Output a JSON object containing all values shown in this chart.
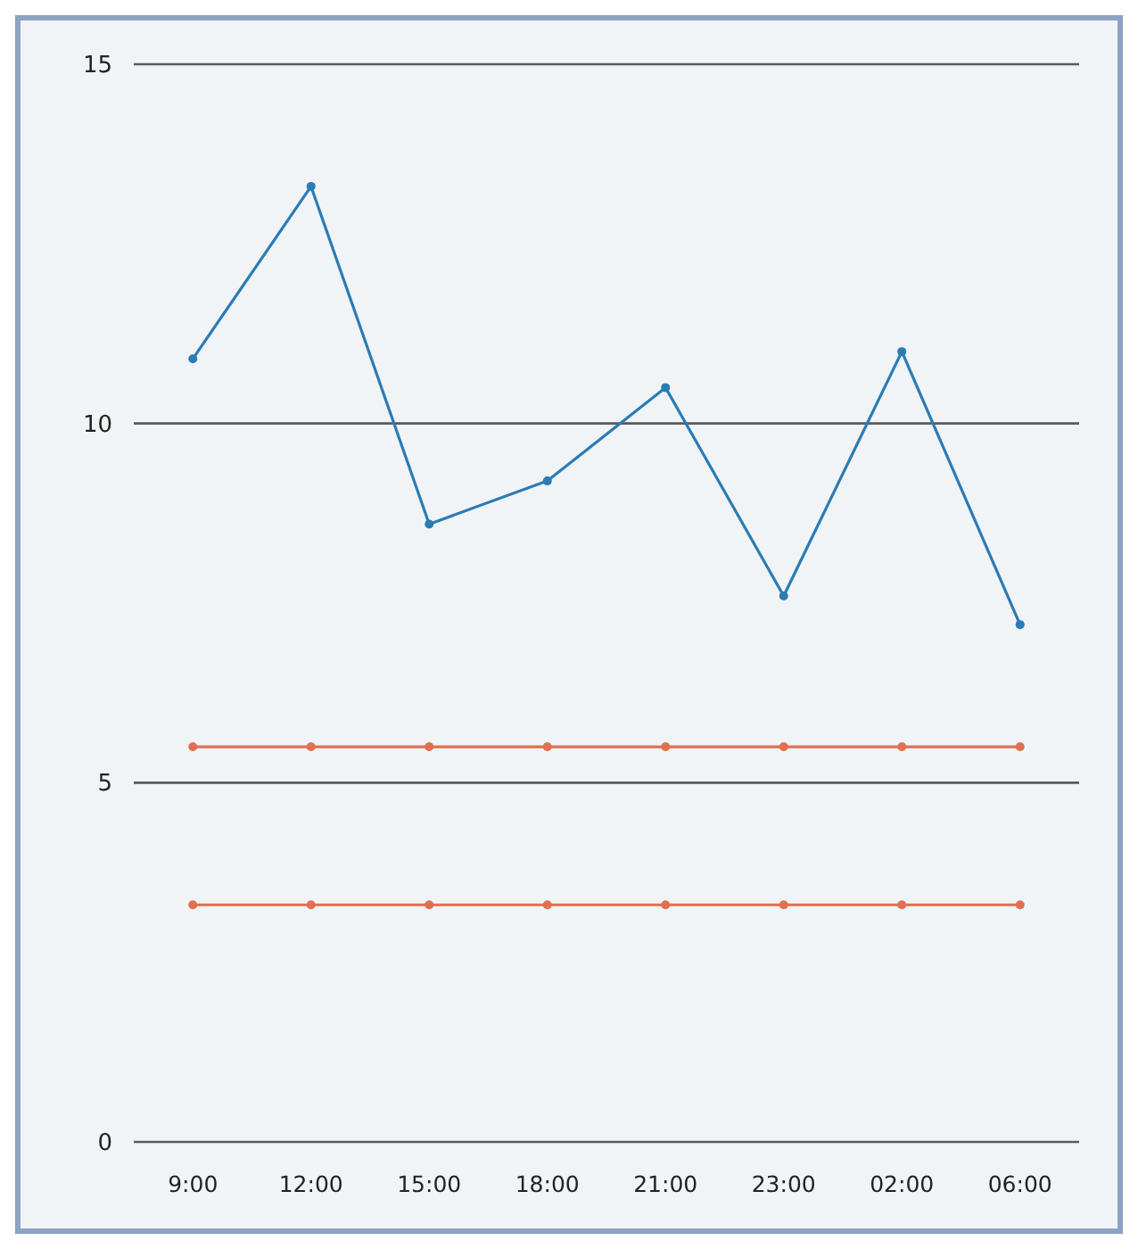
{
  "chart_data": {
    "type": "line",
    "categories": [
      "9:00",
      "12:00",
      "15:00",
      "18:00",
      "21:00",
      "23:00",
      "02:00",
      "06:00"
    ],
    "series": [
      {
        "color": "#2b7bb5",
        "values": [
          10.9,
          13.3,
          8.6,
          9.2,
          10.5,
          7.6,
          11.0,
          7.2
        ]
      },
      {
        "color": "#e0704f",
        "values": [
          5.5,
          5.5,
          5.5,
          5.5,
          5.5,
          5.5,
          5.5,
          5.5
        ]
      },
      {
        "color": "#e0704f",
        "values": [
          3.3,
          3.3,
          3.3,
          3.3,
          3.3,
          3.3,
          3.3,
          3.3
        ]
      }
    ],
    "ylim": [
      0,
      15
    ],
    "yticks": [
      0,
      5,
      10,
      15
    ],
    "grid": "y",
    "marker": "circle",
    "line_style": "solid"
  }
}
